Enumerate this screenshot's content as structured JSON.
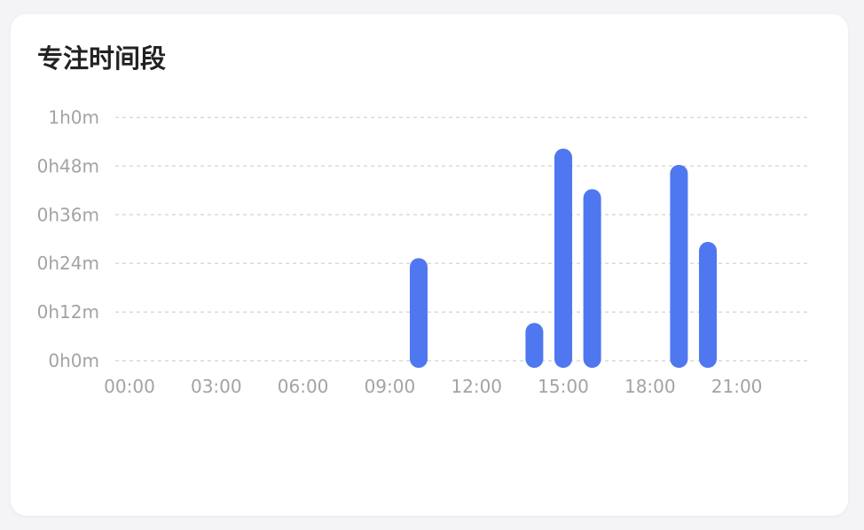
{
  "card": {
    "title": "专注时间段"
  },
  "chart_data": {
    "type": "bar",
    "title": "专注时间段",
    "xlabel": "",
    "ylabel": "",
    "x_unit": "hour of day",
    "y_unit": "minutes",
    "x_range": [
      0,
      24
    ],
    "x_ticks": [
      {
        "value": 0,
        "label": "00:00"
      },
      {
        "value": 3,
        "label": "03:00"
      },
      {
        "value": 6,
        "label": "06:00"
      },
      {
        "value": 9,
        "label": "09:00"
      },
      {
        "value": 12,
        "label": "12:00"
      },
      {
        "value": 15,
        "label": "15:00"
      },
      {
        "value": 18,
        "label": "18:00"
      },
      {
        "value": 21,
        "label": "21:00"
      }
    ],
    "ylim": [
      0,
      60
    ],
    "y_ticks": [
      {
        "value": 0,
        "label": "0h0m"
      },
      {
        "value": 12,
        "label": "0h12m"
      },
      {
        "value": 24,
        "label": "0h24m"
      },
      {
        "value": 36,
        "label": "0h36m"
      },
      {
        "value": 48,
        "label": "0h48m"
      },
      {
        "value": 60,
        "label": "1h0m"
      }
    ],
    "grid": true,
    "grid_style": "dashed",
    "bars": [
      {
        "hour": 10,
        "minutes": 24
      },
      {
        "hour": 14,
        "minutes": 8
      },
      {
        "hour": 15,
        "minutes": 51
      },
      {
        "hour": 16,
        "minutes": 41
      },
      {
        "hour": 19,
        "minutes": 47
      },
      {
        "hour": 20,
        "minutes": 28
      }
    ],
    "colors": {
      "bar": "#4f78f0",
      "grid": "#d9d9d9",
      "tick_text": "#a3a3a3"
    }
  }
}
